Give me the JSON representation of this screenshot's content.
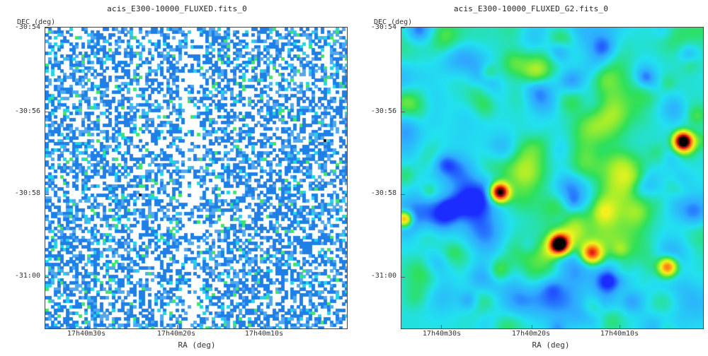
{
  "left_panel": {
    "title": "acis_E300-10000_FLUXED.fits_0",
    "y_axis_label": "DEC (deg)",
    "x_axis_label": "RA (deg)",
    "y_ticks": [
      "-30:54",
      "-30:56",
      "-30:58",
      "-31:00"
    ],
    "x_ticks": [
      "17h40m30s",
      "17h40m20s",
      "17h40m10s"
    ],
    "colormap": [
      "#ffffff",
      "#1f7fe6",
      "#4fa8f0",
      "#22d4e8",
      "#3fe56a",
      "#0a0a0a"
    ]
  },
  "right_panel": {
    "title": "acis_E300-10000_FLUXED_G2.fits_0",
    "y_axis_label": "DEC (deg)",
    "x_axis_label": "RA (deg)",
    "y_ticks": [
      "-30:54",
      "-30:56",
      "-30:58",
      "-31:00"
    ],
    "x_ticks": [
      "17h40m30s",
      "17h40m20s",
      "17h40m10s"
    ],
    "colormap": [
      "#1a2cff",
      "#2fa8ff",
      "#22e0f0",
      "#2ee05a",
      "#a8ee2a",
      "#f6f21c",
      "#ffb01a",
      "#ff6a12",
      "#e01414",
      "#7a0a0a",
      "#000000"
    ]
  }
}
